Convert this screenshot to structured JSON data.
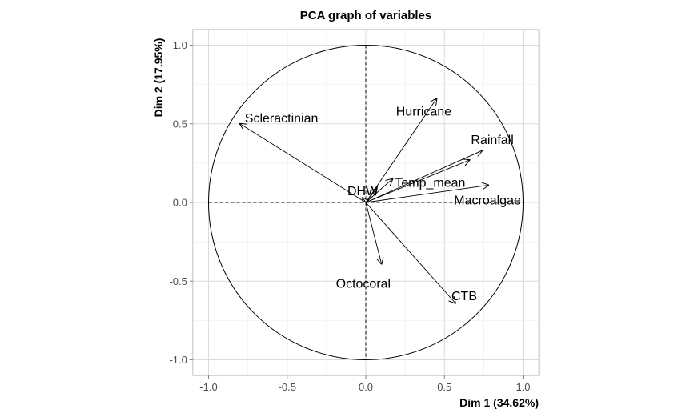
{
  "chart_data": {
    "type": "scatter",
    "subtype": "pca-correlation-circle",
    "title": "PCA graph of variables",
    "xlabel": "Dim 1 (34.62%)",
    "ylabel": "Dim 2 (17.95%)",
    "xlim": [
      -1.1,
      1.1
    ],
    "ylim": [
      -1.1,
      1.1
    ],
    "x_ticks": [
      -1.0,
      -0.5,
      0.0,
      0.5,
      1.0
    ],
    "x_tick_labels": [
      "-1.0",
      "-0.5",
      "0.0",
      "0.5",
      "1.0"
    ],
    "y_ticks": [
      -1.0,
      -0.5,
      0.0,
      0.5,
      1.0
    ],
    "y_tick_labels": [
      "-1.0",
      "-0.5",
      "0.0",
      "0.5",
      "1.0"
    ],
    "grid": true,
    "unit_circle": true,
    "reference_lines": [
      0,
      0
    ],
    "variables": [
      {
        "label": "Scleractinian",
        "x": -0.8,
        "y": 0.5
      },
      {
        "label": "Hurricane",
        "x": 0.45,
        "y": 0.66
      },
      {
        "label": "Rainfall",
        "x": 0.74,
        "y": 0.33
      },
      {
        "label": "",
        "x": 0.66,
        "y": 0.27
      },
      {
        "label": "Temp_mean",
        "x": 0.17,
        "y": 0.15
      },
      {
        "label": "",
        "x": 0.07,
        "y": 0.09
      },
      {
        "label": "Macroalgae",
        "x": 0.78,
        "y": 0.11
      },
      {
        "label": "DHW",
        "x": -0.02,
        "y": 0.03
      },
      {
        "label": "Octocoral",
        "x": 0.1,
        "y": -0.39
      },
      {
        "label": "CTB",
        "x": 0.57,
        "y": -0.64
      }
    ]
  }
}
